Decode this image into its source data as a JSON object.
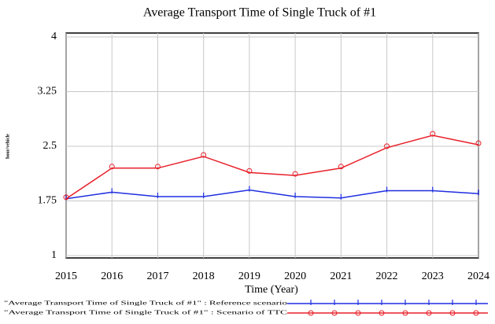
{
  "chart_data": {
    "type": "line",
    "title": "Average Transport Time of Single Truck of #1",
    "y_label": "hour/vehicle",
    "x_label": "Time (Year)",
    "x": [
      2015,
      2016,
      2017,
      2018,
      2019,
      2020,
      2021,
      2022,
      2023,
      2024
    ],
    "xlim": [
      2015,
      2024
    ],
    "xticks": [
      2015,
      2016,
      2017,
      2018,
      2019,
      2020,
      2021,
      2022,
      2023,
      2024
    ],
    "ylim": [
      1,
      4
    ],
    "yticks": [
      1,
      1.75,
      2.5,
      3.25,
      4
    ],
    "grid": true,
    "series": [
      {
        "name": "\"Average Transport Time of Single Truck of #1\" : Reference scenario",
        "color": "#1f2fe0",
        "values": [
          1.78,
          1.87,
          1.81,
          1.81,
          1.9,
          1.81,
          1.79,
          1.89,
          1.89,
          1.85
        ]
      },
      {
        "name": "\"Average Transport Time of Single Truck of #1\" : Scenario of TTC",
        "color": "#e8202a",
        "values": [
          1.78,
          2.2,
          2.2,
          2.36,
          2.14,
          2.1,
          2.2,
          2.48,
          2.65,
          2.52
        ]
      }
    ]
  }
}
